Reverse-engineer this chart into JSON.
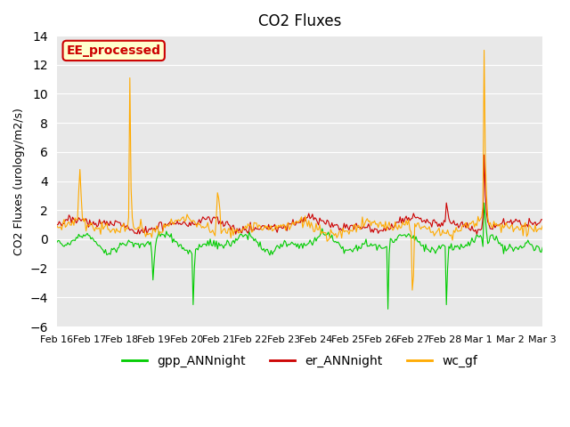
{
  "title": "CO2 Fluxes",
  "ylabel": "CO2 Fluxes (urology/m2/s)",
  "xlabel": "",
  "ylim": [
    -6,
    14
  ],
  "yticks": [
    -6,
    -4,
    -2,
    0,
    2,
    4,
    6,
    8,
    10,
    12,
    14
  ],
  "background_color": "#e8e8e8",
  "annotation_text": "EE_processed",
  "annotation_bg": "#ffffcc",
  "annotation_border": "#cc0000",
  "line_colors": {
    "gpp": "#00cc00",
    "er": "#cc0000",
    "wc": "#ffaa00"
  },
  "legend_labels": [
    "gpp_ANNnight",
    "er_ANNnight",
    "wc_gf"
  ],
  "n_points": 400,
  "date_labels": [
    "Feb 16",
    "Feb 17",
    "Feb 18",
    "Feb 19",
    "Feb 20",
    "Feb 21",
    "Feb 22",
    "Feb 23",
    "Feb 24",
    "Feb 25",
    "Feb 26",
    "Feb 27",
    "Feb 28",
    "Mar 1",
    "Mar 2",
    "Mar 3"
  ]
}
